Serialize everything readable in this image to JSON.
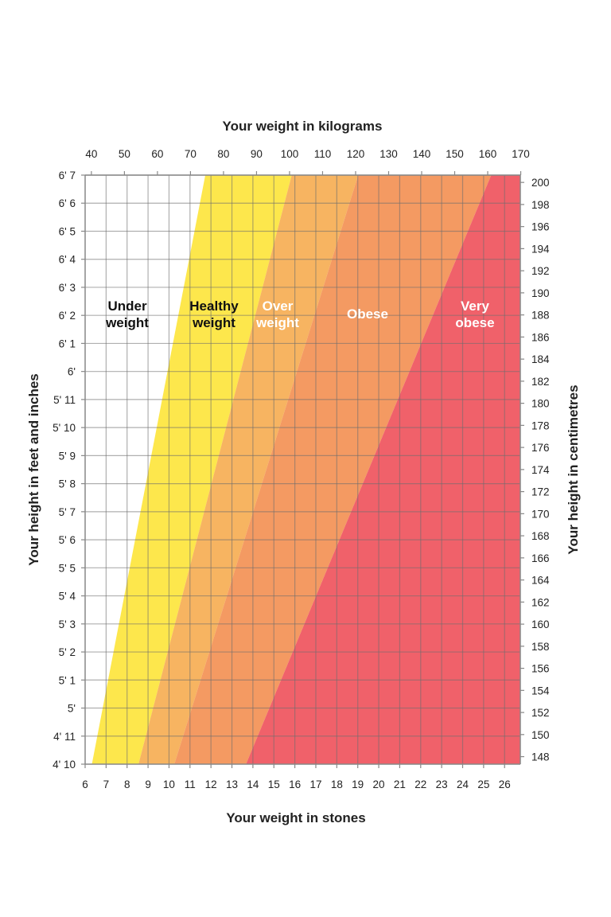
{
  "chart_data": {
    "type": "area",
    "title_top": "Your weight in kilograms",
    "xlabel": "Your weight in stones",
    "ylabel_left": "Your height in feet and inches",
    "ylabel_right": "Your height in centimetres",
    "x_stones_range": [
      6,
      26.75
    ],
    "y_inches_range": [
      58,
      79
    ],
    "grid": true,
    "stone_ticks": [
      "6",
      "7",
      "8",
      "9",
      "10",
      "11",
      "12",
      "13",
      "14",
      "15",
      "16",
      "17",
      "18",
      "19",
      "20",
      "21",
      "22",
      "23",
      "24",
      "25",
      "26"
    ],
    "kg_ticks": [
      "40",
      "50",
      "60",
      "70",
      "80",
      "90",
      "100",
      "110",
      "120",
      "130",
      "140",
      "150",
      "160",
      "170"
    ],
    "feet_inch_ticks": [
      "4' 10",
      "4' 11",
      "5'",
      "5' 1",
      "5' 2",
      "5' 3",
      "5' 4",
      "5' 5",
      "5' 6",
      "5' 7",
      "5' 8",
      "5' 9",
      "5' 10",
      "5' 11",
      "6'",
      "6' 1",
      "6' 2",
      "6' 3",
      "6' 4",
      "6' 5",
      "6' 6",
      "6' 7"
    ],
    "cm_ticks": [
      "148",
      "150",
      "152",
      "154",
      "156",
      "158",
      "160",
      "162",
      "164",
      "166",
      "168",
      "170",
      "172",
      "174",
      "176",
      "178",
      "180",
      "182",
      "184",
      "186",
      "188",
      "190",
      "192",
      "194",
      "196",
      "198",
      "200"
    ],
    "bmi_boundaries": [
      18.5,
      25,
      30,
      40
    ],
    "bands": [
      {
        "label": [
          "Under",
          "weight"
        ],
        "color": "#ffffff",
        "text_color": "#111111"
      },
      {
        "label": [
          "Healthy",
          "weight"
        ],
        "color": "#fde74c",
        "text_color": "#111111"
      },
      {
        "label": [
          "Over",
          "weight"
        ],
        "color": "#f7b461",
        "text_color": "#ffffff"
      },
      {
        "label": [
          "Obese"
        ],
        "color": "#f49a62",
        "text_color": "#ffffff"
      },
      {
        "label": [
          "Very",
          "obese"
        ],
        "color": "#f0616a",
        "text_color": "#ffffff"
      }
    ]
  }
}
